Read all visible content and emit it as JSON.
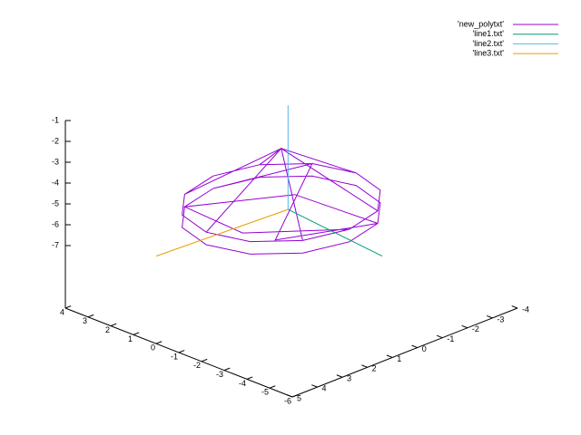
{
  "chart_data": {
    "type": "line3d",
    "legend": "top right",
    "xlim": [
      -6,
      4
    ],
    "ylim": [
      -4,
      5
    ],
    "zlim": [
      -7,
      -1
    ],
    "xticks": [
      -6,
      -5,
      -4,
      -3,
      -2,
      -1,
      0,
      1,
      2,
      3,
      4
    ],
    "yticks": [
      -4,
      -3,
      -2,
      -1,
      0,
      1,
      2,
      3,
      4,
      5
    ],
    "zticks": [
      -7,
      -6,
      -5,
      -4,
      -3,
      -2,
      -1
    ],
    "series": [
      {
        "name": "'new_polytxt'",
        "color": "#9400d3",
        "x": [
          3,
          2.6,
          1.5,
          0,
          -1.5,
          -2.6,
          -3,
          -2.6,
          -1.5,
          0,
          1.5,
          2.6,
          3,
          null,
          3,
          2.6,
          1.5,
          0,
          -1.5,
          -2.6,
          -3,
          -2.6,
          -1.5,
          0,
          1.5,
          2.6,
          3,
          null,
          0,
          2.6,
          0,
          0,
          0,
          -2.6,
          0,
          -2.6,
          0,
          0,
          0,
          2.6,
          null,
          3,
          1.5,
          -1.5,
          -2.6,
          0.5,
          2.6,
          -0.5,
          -3
        ],
        "y": [
          0,
          1.5,
          2.6,
          3,
          2.6,
          1.5,
          0,
          -1.5,
          -2.6,
          -3,
          -2.6,
          -1.5,
          0,
          null,
          0,
          1.5,
          2.6,
          3,
          2.6,
          1.5,
          0,
          -1.5,
          -2.6,
          -3,
          -2.6,
          -1.5,
          0,
          null,
          0,
          1.5,
          0,
          3,
          0,
          1.5,
          0,
          -1.5,
          0,
          -3,
          0,
          -1.5,
          null,
          0,
          -2.6,
          1.6,
          -1.5,
          -1,
          1.5,
          2,
          0
        ],
        "z": [
          -5.6,
          -5.6,
          -5.6,
          -5.6,
          -5.6,
          -5.6,
          -5.6,
          -5.6,
          -5.6,
          -5.6,
          -5.6,
          -5.6,
          -5.6,
          null,
          -6.2,
          -6.2,
          -6.2,
          -6.2,
          -6.2,
          -6.2,
          -6.2,
          -6.2,
          -6.2,
          -6.2,
          -6.2,
          -6.2,
          -6.2,
          null,
          -3,
          -5.6,
          -3,
          -5.6,
          -3,
          -5.6,
          -3,
          -5.6,
          -3,
          -5.6,
          -3,
          -5.6,
          null,
          -6.2,
          -5.6,
          -6,
          -6.2,
          -5.9,
          -6.2,
          -5.9,
          -5.6
        ]
      },
      {
        "name": "'line1.txt'",
        "color": "#009e73",
        "x": [
          -0.3,
          -5
        ],
        "y": [
          0,
          0.5
        ],
        "z": [
          -5.8,
          -5.8
        ]
      },
      {
        "name": "'line2.txt'",
        "color": "#56b4e9",
        "x": [
          -0.3,
          -0.3
        ],
        "y": [
          0,
          0
        ],
        "z": [
          -5.8,
          -0.8
        ]
      },
      {
        "name": "'line3.txt'",
        "color": "#e69f00",
        "x": [
          -0.3,
          0
        ],
        "y": [
          0,
          5
        ],
        "z": [
          -5.8,
          -5.8
        ]
      }
    ]
  }
}
